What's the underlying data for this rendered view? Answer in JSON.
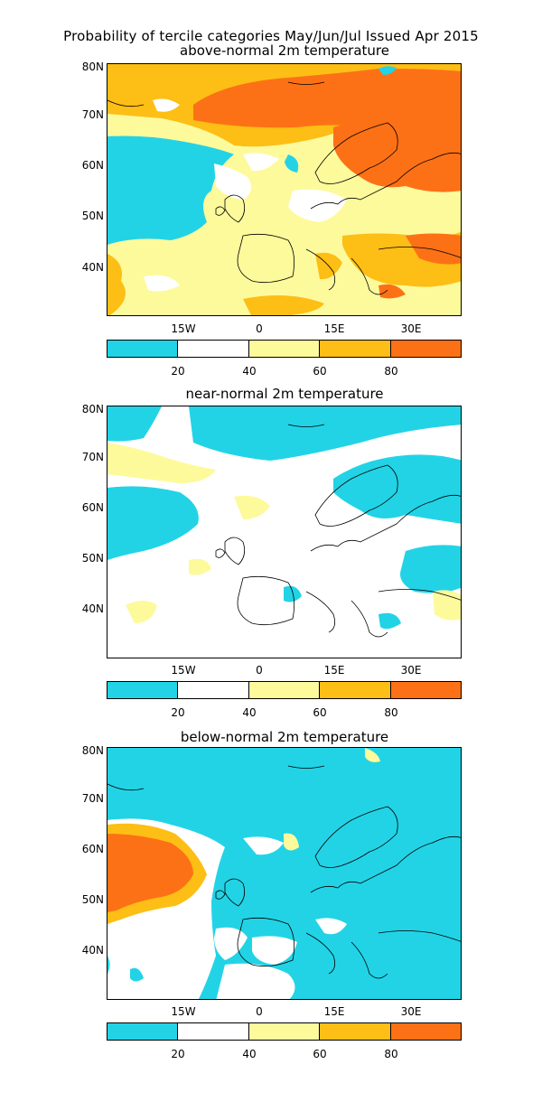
{
  "header": {
    "title": "Probability of tercile categories May/Jun/Jul Issued Apr 2015"
  },
  "axes": {
    "lat_labels": [
      "80N",
      "70N",
      "60N",
      "50N",
      "40N"
    ],
    "lon_labels": [
      "15W",
      "0",
      "15E",
      "30E"
    ]
  },
  "colorbar": {
    "labels": [
      "20",
      "40",
      "60",
      "80"
    ],
    "colors": [
      "#22d3e6",
      "#ffffff",
      "#fdfa9c",
      "#fdbe15",
      "#fd7116"
    ]
  },
  "panels": [
    {
      "title": "above-normal 2m temperature"
    },
    {
      "title": "near-normal 2m temperature"
    },
    {
      "title": "below-normal 2m temperature"
    }
  ]
}
